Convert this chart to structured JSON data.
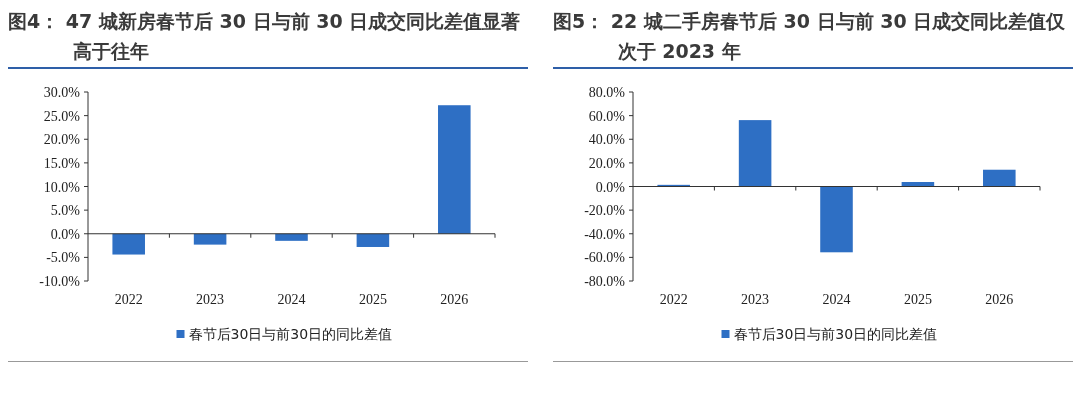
{
  "chart_data": [
    {
      "type": "bar",
      "title": "图4： 47 城新房春节后 30 日与前 30 日成交同比差值显著高于往年",
      "categories": [
        "2022",
        "2023",
        "2024",
        "2025",
        "2026"
      ],
      "series": [
        {
          "name": "春节后30日与前30日的同比差值",
          "color": "#2e6fc4",
          "values": [
            -4.4,
            -2.3,
            -1.5,
            -2.8,
            27.2
          ]
        }
      ],
      "ylim": [
        -10,
        30
      ],
      "yticks": [
        {
          "value": -10,
          "label": "-10.0%"
        },
        {
          "value": -5,
          "label": "-5.0%"
        },
        {
          "value": 0,
          "label": "0.0%"
        },
        {
          "value": 5,
          "label": "5.0%"
        },
        {
          "value": 10,
          "label": "10.0%"
        },
        {
          "value": 15,
          "label": "15.0%"
        },
        {
          "value": 20,
          "label": "20.0%"
        },
        {
          "value": 25,
          "label": "25.0%"
        },
        {
          "value": 30,
          "label": "30.0%"
        }
      ],
      "legend": "bottom"
    },
    {
      "type": "bar",
      "title": "图5： 22 城二手房春节后 30 日与前 30 日成交同比差值仅次于 2023 年",
      "categories": [
        "2022",
        "2023",
        "2024",
        "2025",
        "2026"
      ],
      "series": [
        {
          "name": "春节后30日与前30日的同比差值",
          "color": "#2e6fc4",
          "values": [
            1.4,
            56.2,
            -55.7,
            3.8,
            14.2
          ]
        }
      ],
      "ylim": [
        -80,
        80
      ],
      "yticks": [
        {
          "value": -80,
          "label": "-80.0%"
        },
        {
          "value": -60,
          "label": "-60.0%"
        },
        {
          "value": -40,
          "label": "-40.0%"
        },
        {
          "value": -20,
          "label": "-20.0%"
        },
        {
          "value": 0,
          "label": "0.0%"
        },
        {
          "value": 20,
          "label": "20.0%"
        },
        {
          "value": 40,
          "label": "40.0%"
        },
        {
          "value": 60,
          "label": "60.0%"
        },
        {
          "value": 80,
          "label": "80.0%"
        }
      ],
      "legend": "bottom"
    }
  ]
}
